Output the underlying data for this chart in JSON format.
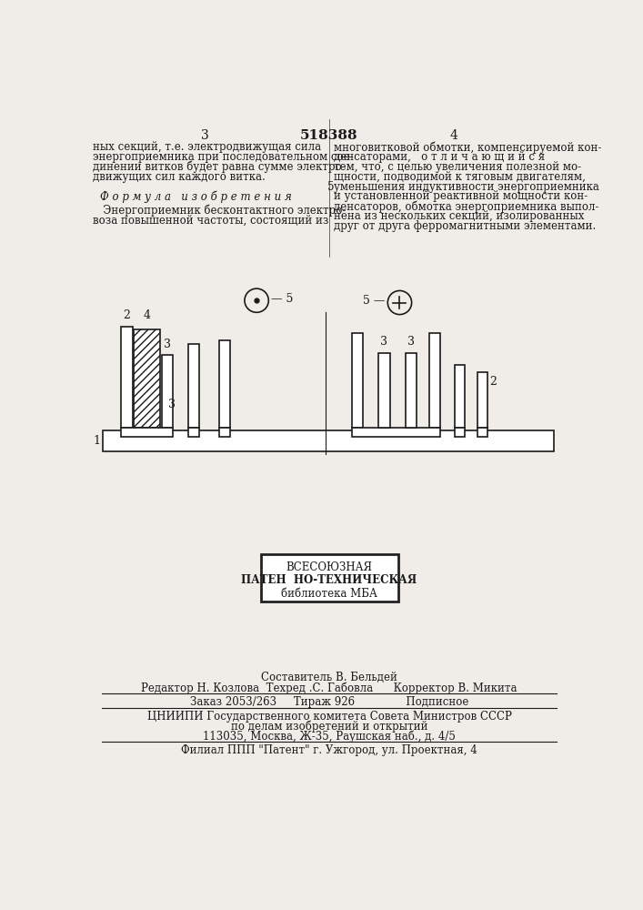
{
  "bg_color": "#f0ede8",
  "page_number_left": "3",
  "page_number_center": "518388",
  "page_number_right": "4",
  "left_col_text": [
    "ных секций, т.е. электродвижущая сила",
    "энергоприемника при последовательном сое-",
    "динении витков будет равна сумме электро-",
    "движущих сил каждого витка."
  ],
  "formula_header": "Ф о р м у л а   и з о б р е т е н и я",
  "formula_text": [
    "   Энергоприемник бесконтактного электро-",
    "воза повышенной частоты, состоящий из"
  ],
  "right_col_text": [
    "многовитковой обмотки, компенсируемой кон-",
    "денсаторами,   о т л и ч а ю щ и й с я",
    "тем, что, с целью увеличения полезной мо-",
    "щности, подводимой к тяговым двигателям,",
    "уменьшения индуктивности энергоприемника",
    "и установленной реактивной мощности кон-",
    "денсаторов, обмотка энергоприемника выпол-",
    "нена из нескольких секций, изолированных",
    "друг от друга ферромагнитными элементами."
  ],
  "stamp_text": [
    "ВСЕСОЮЗНАЯ",
    "ПАТЕН  НО-ТЕХНИЧЕСКАЯ",
    "библиотека МБА"
  ],
  "footer_composer": "Составитель В. Бельдей",
  "footer_editor": "Редактор Н. Козлова  Техред .С. Габовла      Корректор В. Микита",
  "footer_order": "Заказ 2053/263     Тираж 926               Подписное",
  "footer_org": "ЦНИИПИ Государственного комитета Совета Министров СССР",
  "footer_org2": "по делам изобретений и открытий",
  "footer_addr": "113035, Москва, Ж-35, Раушская наб., д. 4/5",
  "footer_branch": "Филиал ППП \"Патент\" г. Ужгород, ул. Проектная, 4",
  "text_color": "#1a1a1a",
  "line_color": "#333333"
}
